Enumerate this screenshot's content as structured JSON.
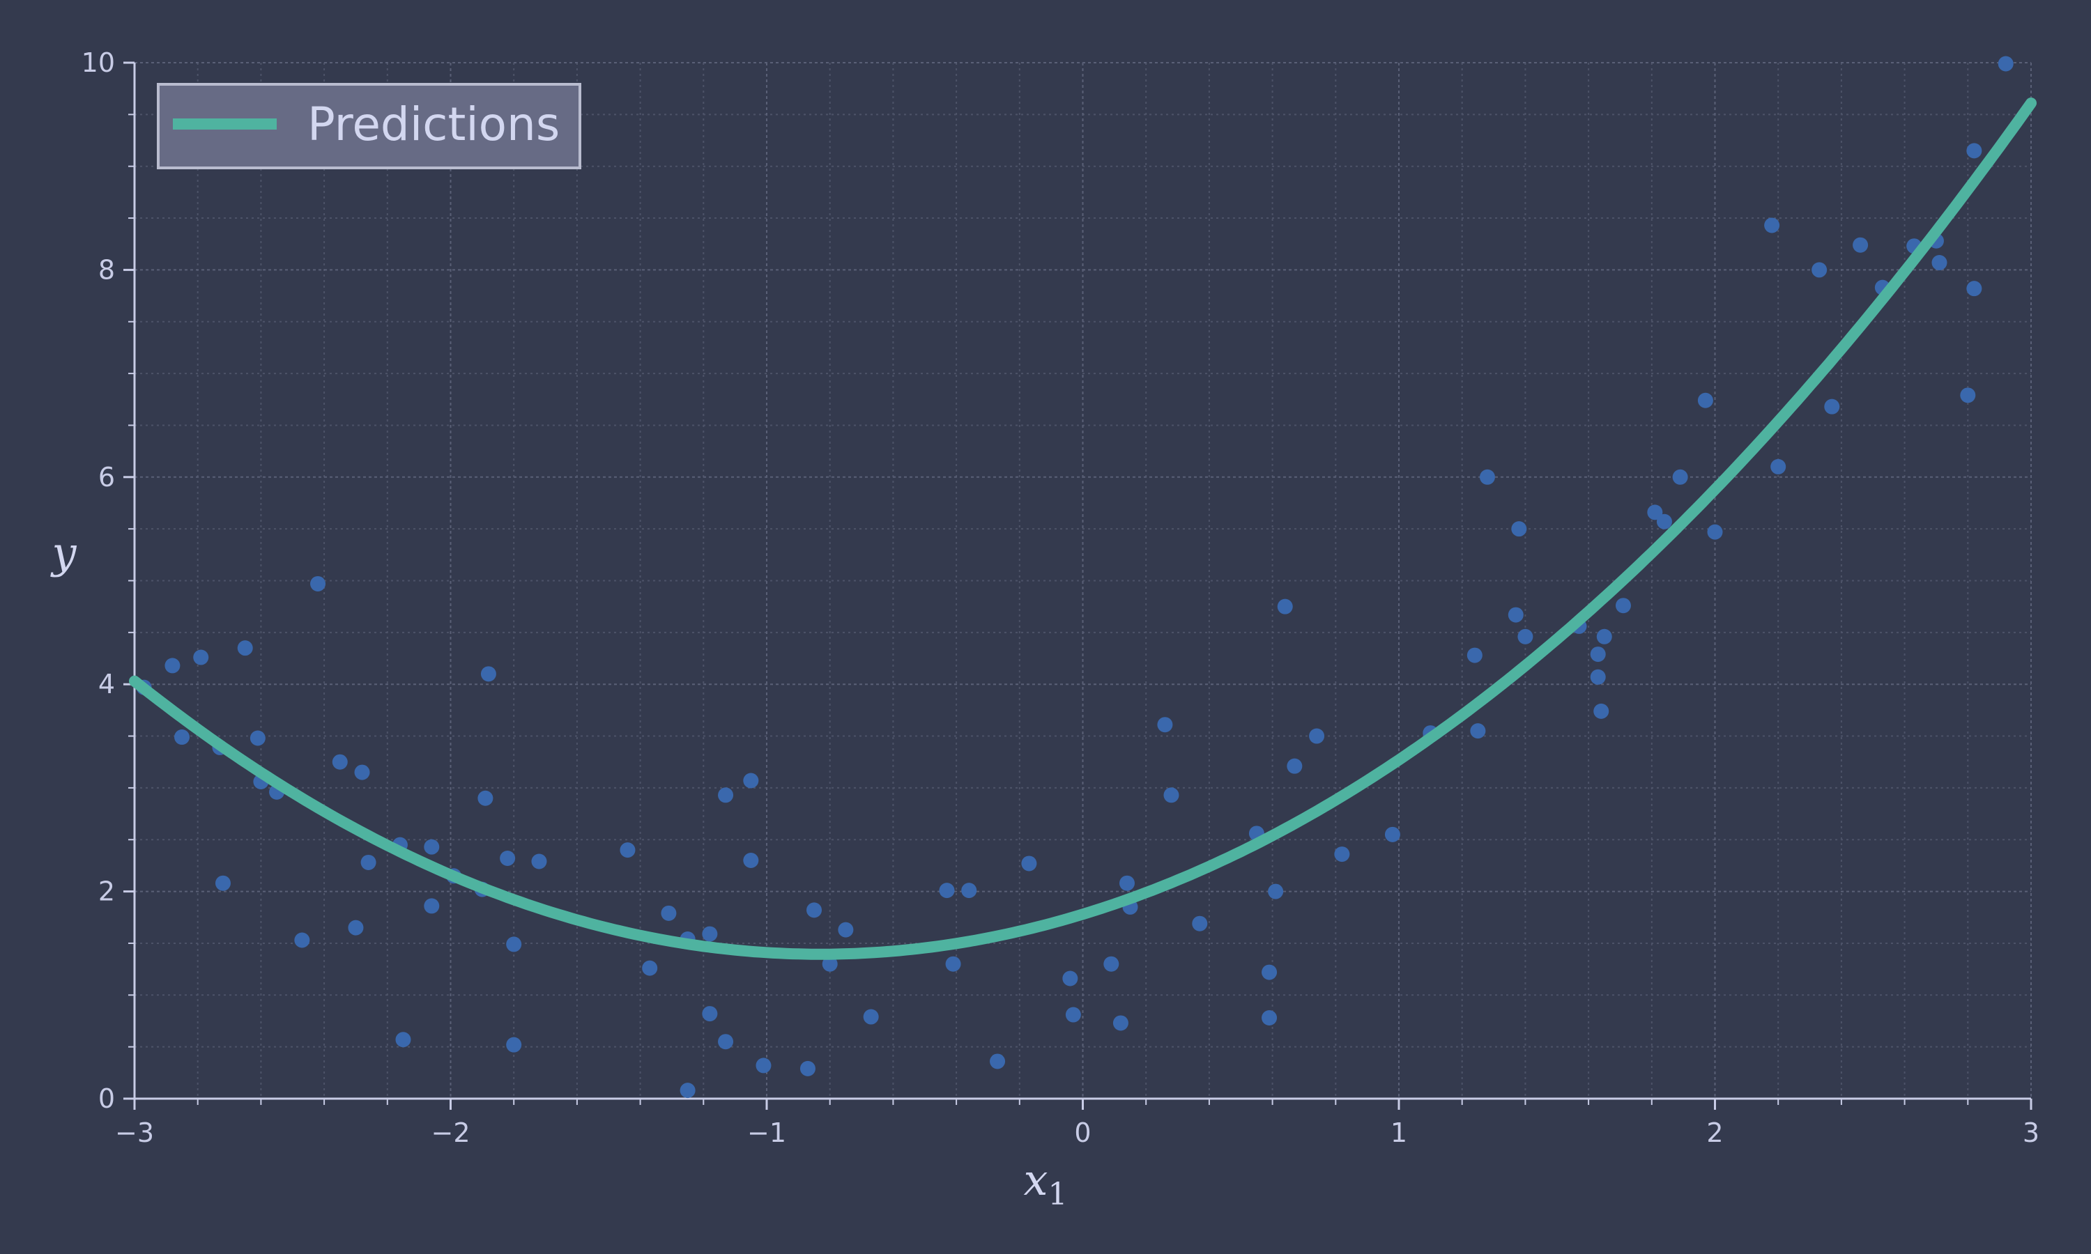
{
  "chart_data": {
    "type": "scatter",
    "xlabel": "x",
    "xlabel_sub": "1",
    "ylabel": "y",
    "xlim": [
      -3,
      3
    ],
    "ylim": [
      0,
      10
    ],
    "x_ticks": [
      -3,
      -2,
      -1,
      0,
      1,
      2,
      3
    ],
    "x_tick_labels": [
      "−3",
      "−2",
      "−1",
      "0",
      "1",
      "2",
      "3"
    ],
    "y_ticks": [
      0,
      2,
      4,
      6,
      8,
      10
    ],
    "y_tick_labels": [
      "0",
      "2",
      "4",
      "6",
      "8",
      "10"
    ],
    "grid": true,
    "legend": {
      "position": "top-left",
      "entries": [
        "Predictions"
      ]
    },
    "colors": {
      "background": "#343a4e",
      "points": "#3a68ad",
      "line": "#4fb3a0",
      "text": "#c8cce6"
    },
    "series": [
      {
        "kind": "scatter",
        "points": [
          [
            -2.97,
            3.97
          ],
          [
            -2.88,
            4.18
          ],
          [
            -2.85,
            3.49
          ],
          [
            -2.79,
            4.26
          ],
          [
            -2.73,
            3.39
          ],
          [
            -2.72,
            2.08
          ],
          [
            -2.65,
            4.35
          ],
          [
            -2.61,
            3.48
          ],
          [
            -2.6,
            3.06
          ],
          [
            -2.55,
            2.96
          ],
          [
            -2.47,
            1.53
          ],
          [
            -2.42,
            4.97
          ],
          [
            -2.35,
            3.25
          ],
          [
            -2.3,
            1.65
          ],
          [
            -2.28,
            3.15
          ],
          [
            -2.26,
            2.28
          ],
          [
            -2.16,
            2.45
          ],
          [
            -2.15,
            0.57
          ],
          [
            -2.06,
            2.43
          ],
          [
            -2.06,
            1.86
          ],
          [
            -1.99,
            2.15
          ],
          [
            -1.9,
            2.02
          ],
          [
            -1.89,
            2.9
          ],
          [
            -1.88,
            4.1
          ],
          [
            -1.82,
            2.32
          ],
          [
            -1.8,
            1.49
          ],
          [
            -1.8,
            0.52
          ],
          [
            -1.72,
            2.29
          ],
          [
            -1.44,
            2.4
          ],
          [
            -1.37,
            1.26
          ],
          [
            -1.31,
            1.79
          ],
          [
            -1.25,
            1.54
          ],
          [
            -1.25,
            0.08
          ],
          [
            -1.18,
            1.59
          ],
          [
            -1.18,
            0.82
          ],
          [
            -1.13,
            2.93
          ],
          [
            -1.13,
            0.55
          ],
          [
            -1.05,
            3.07
          ],
          [
            -1.05,
            2.3
          ],
          [
            -1.01,
            0.32
          ],
          [
            -0.87,
            0.29
          ],
          [
            -0.85,
            1.82
          ],
          [
            -0.8,
            1.3
          ],
          [
            -0.75,
            1.63
          ],
          [
            -0.67,
            0.79
          ],
          [
            -0.43,
            2.01
          ],
          [
            -0.41,
            1.3
          ],
          [
            -0.36,
            2.01
          ],
          [
            -0.27,
            0.36
          ],
          [
            -0.17,
            2.27
          ],
          [
            -0.04,
            1.16
          ],
          [
            -0.03,
            0.81
          ],
          [
            0.09,
            1.3
          ],
          [
            0.12,
            0.73
          ],
          [
            0.14,
            2.08
          ],
          [
            0.15,
            1.85
          ],
          [
            0.26,
            3.61
          ],
          [
            0.28,
            2.93
          ],
          [
            0.37,
            1.69
          ],
          [
            0.55,
            2.56
          ],
          [
            0.59,
            1.22
          ],
          [
            0.59,
            0.78
          ],
          [
            0.61,
            2.0
          ],
          [
            0.64,
            4.75
          ],
          [
            0.67,
            3.21
          ],
          [
            0.74,
            3.5
          ],
          [
            0.82,
            2.36
          ],
          [
            0.98,
            2.55
          ],
          [
            1.1,
            3.53
          ],
          [
            1.24,
            4.28
          ],
          [
            1.25,
            3.55
          ],
          [
            1.28,
            6.0
          ],
          [
            1.37,
            4.67
          ],
          [
            1.38,
            5.5
          ],
          [
            1.4,
            4.46
          ],
          [
            1.57,
            4.56
          ],
          [
            1.63,
            4.29
          ],
          [
            1.63,
            4.07
          ],
          [
            1.64,
            3.74
          ],
          [
            1.65,
            4.46
          ],
          [
            1.71,
            4.76
          ],
          [
            1.81,
            5.66
          ],
          [
            1.84,
            5.57
          ],
          [
            1.89,
            6.0
          ],
          [
            1.97,
            6.74
          ],
          [
            2.0,
            5.47
          ],
          [
            2.18,
            8.43
          ],
          [
            2.2,
            6.1
          ],
          [
            2.33,
            8.0
          ],
          [
            2.37,
            6.68
          ],
          [
            2.46,
            8.24
          ],
          [
            2.53,
            7.83
          ],
          [
            2.63,
            8.23
          ],
          [
            2.7,
            8.28
          ],
          [
            2.71,
            8.07
          ],
          [
            2.8,
            6.79
          ],
          [
            2.82,
            7.82
          ],
          [
            2.82,
            9.15
          ],
          [
            2.92,
            9.99
          ]
        ]
      },
      {
        "kind": "line",
        "name": "Predictions",
        "model": "quadratic",
        "coefficients": {
          "a": 0.56,
          "b": 0.93,
          "c": 1.78
        }
      }
    ]
  }
}
